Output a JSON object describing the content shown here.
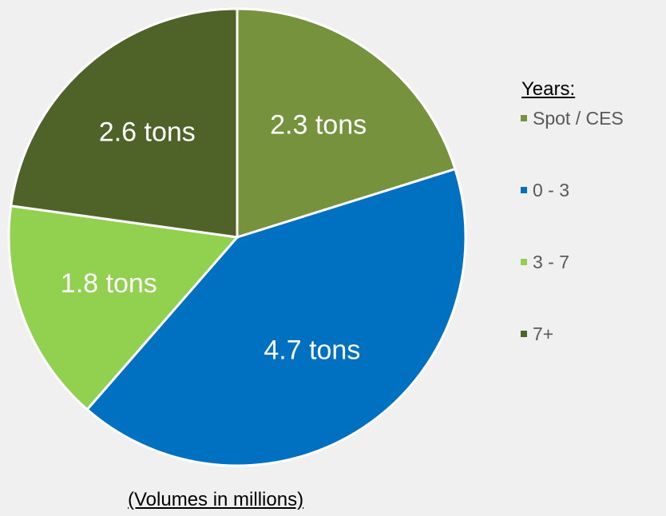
{
  "chart_data": {
    "type": "pie",
    "categories": [
      "Spot / CES",
      "0 - 3",
      "3 - 7",
      "7+"
    ],
    "values": [
      2.3,
      4.7,
      1.8,
      2.6
    ],
    "data_labels": [
      "2.3 tons",
      "4.7 tons",
      "1.8 tons",
      "2.6 tons"
    ],
    "colors": [
      "#76923c",
      "#0070c0",
      "#92d050",
      "#4f6228"
    ],
    "legend_title": "Years:",
    "legend_placement": "right",
    "footnote": "(Volumes in millions)",
    "start_angle": "12 o'clock",
    "direction": "clockwise"
  }
}
